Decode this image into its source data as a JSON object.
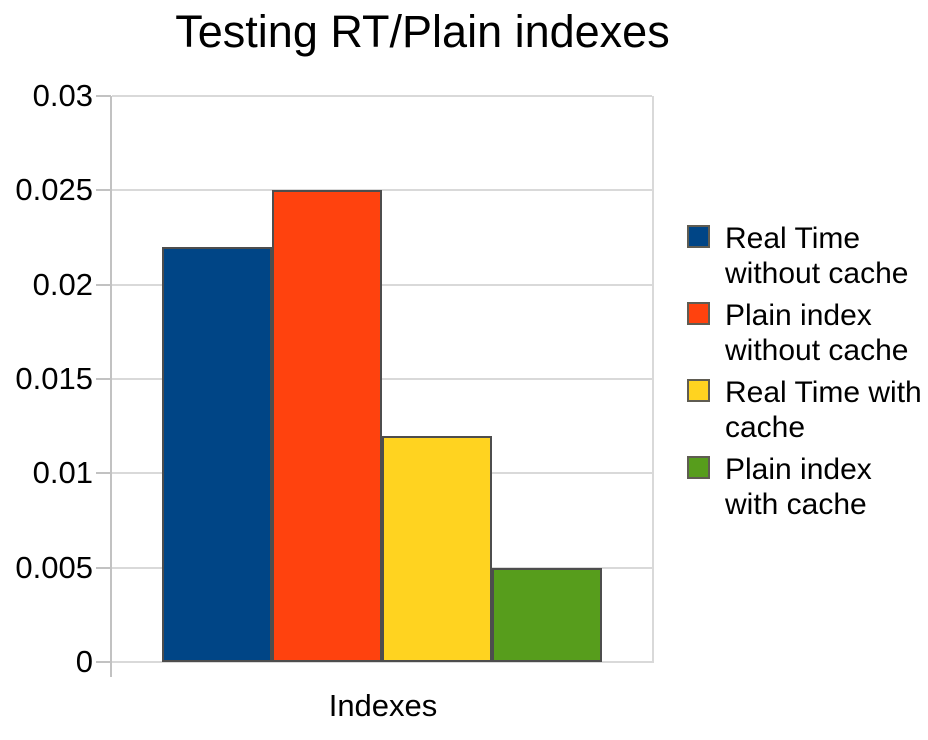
{
  "chart_data": {
    "type": "bar",
    "title": "Testing RT/Plain indexes",
    "xlabel": "Indexes",
    "ylabel": "",
    "categories": [
      "Indexes"
    ],
    "series": [
      {
        "name": "Real Time without cache",
        "values": [
          0.022
        ],
        "color": "#004586"
      },
      {
        "name": "Plain index without cache",
        "values": [
          0.025
        ],
        "color": "#FF420E"
      },
      {
        "name": "Real Time with cache",
        "values": [
          0.012
        ],
        "color": "#FFD320"
      },
      {
        "name": "Plain index with cache",
        "values": [
          0.005
        ],
        "color": "#579D1C"
      }
    ],
    "ylim": [
      0,
      0.03
    ],
    "yticks": [
      {
        "value": 0,
        "label": "0"
      },
      {
        "value": 0.005,
        "label": "0.005"
      },
      {
        "value": 0.01,
        "label": "0.01"
      },
      {
        "value": 0.015,
        "label": "0.015"
      },
      {
        "value": 0.02,
        "label": "0.02"
      },
      {
        "value": 0.025,
        "label": "0.025"
      },
      {
        "value": 0.03,
        "label": "0.03"
      }
    ],
    "grid": true,
    "legend_position": "right",
    "style_colors": {
      "gridline": "#d9d9d9",
      "axis": "#c2c2c2",
      "bar_border": "#4d4d4d",
      "text": "#000000",
      "background": "#ffffff"
    }
  }
}
